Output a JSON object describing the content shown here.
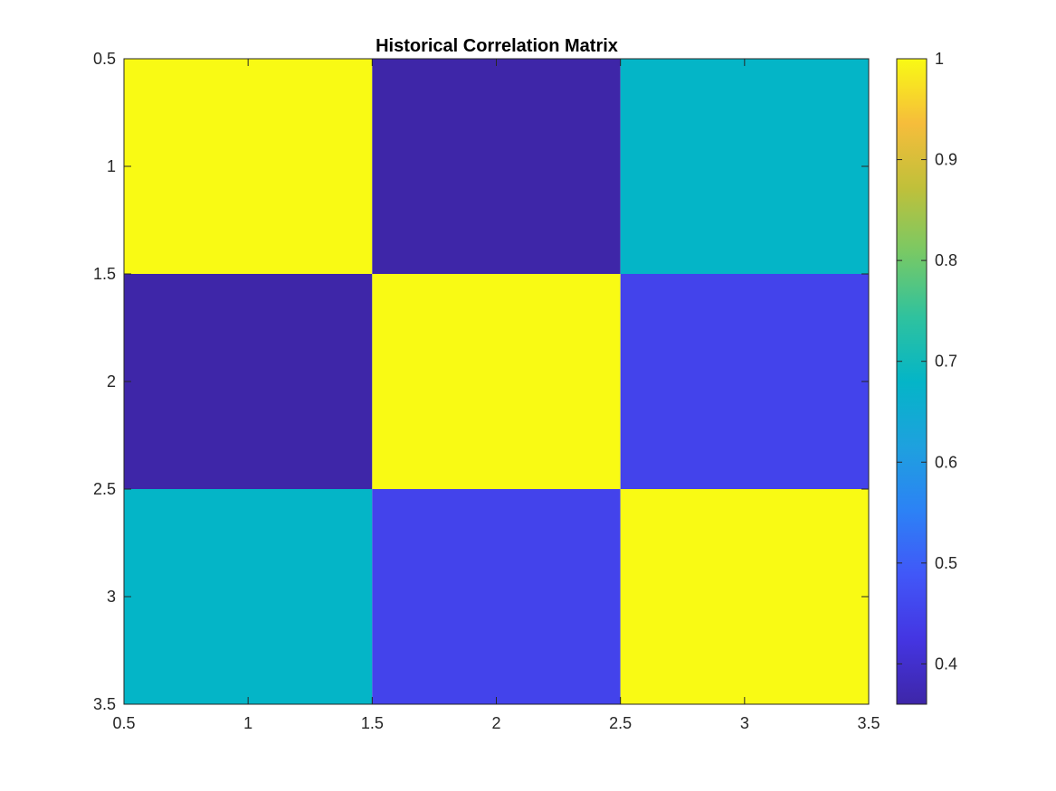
{
  "chart_data": {
    "type": "heatmap",
    "title": "Historical Correlation Matrix",
    "xlabel": "",
    "ylabel": "",
    "x": [
      1,
      2,
      3
    ],
    "y": [
      1,
      2,
      3
    ],
    "values": [
      [
        1.0,
        0.36,
        0.68
      ],
      [
        0.36,
        1.0,
        0.45
      ],
      [
        0.68,
        0.45,
        1.0
      ]
    ],
    "xlim": [
      0.5,
      3.5
    ],
    "ylim": [
      0.5,
      3.5
    ],
    "y_axis_direction": "reversed",
    "xticks": [
      0.5,
      1,
      1.5,
      2,
      2.5,
      3,
      3.5
    ],
    "xtick_labels": [
      "0.5",
      "1",
      "1.5",
      "2",
      "2.5",
      "3",
      "3.5"
    ],
    "yticks": [
      0.5,
      1,
      1.5,
      2,
      2.5,
      3,
      3.5
    ],
    "ytick_labels": [
      "0.5",
      "1",
      "1.5",
      "2",
      "2.5",
      "3",
      "3.5"
    ],
    "grid": false,
    "colormap": "parula",
    "colorbar": {
      "placement": "right",
      "clim": [
        0.36,
        1.0
      ],
      "ticks": [
        0.4,
        0.5,
        0.6,
        0.7,
        0.8,
        0.9,
        1
      ],
      "tick_labels": [
        "0.4",
        "0.5",
        "0.6",
        "0.7",
        "0.8",
        "0.9",
        "1"
      ]
    }
  }
}
